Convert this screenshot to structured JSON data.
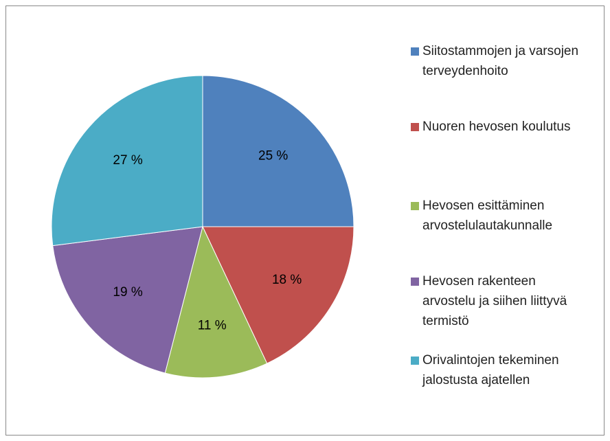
{
  "chart_data": {
    "type": "pie",
    "categories": [
      "Siitostammojen ja varsojen terveydenhoito",
      "Nuoren hevosen koulutus",
      "Hevosen esittäminen arvostelulautakunnalle",
      "Hevosen rakenteen arvostelu ja siihen liittyvä termistö",
      "Orivalintojen tekeminen jalostusta ajatellen"
    ],
    "values": [
      25,
      18,
      11,
      19,
      27
    ],
    "value_labels": [
      "25 %",
      "18 %",
      "11 %",
      "19 %",
      "27 %"
    ],
    "colors": [
      "#4f81bd",
      "#c0504d",
      "#9bbb59",
      "#8064a2",
      "#4bacc6"
    ],
    "legend": "right"
  }
}
